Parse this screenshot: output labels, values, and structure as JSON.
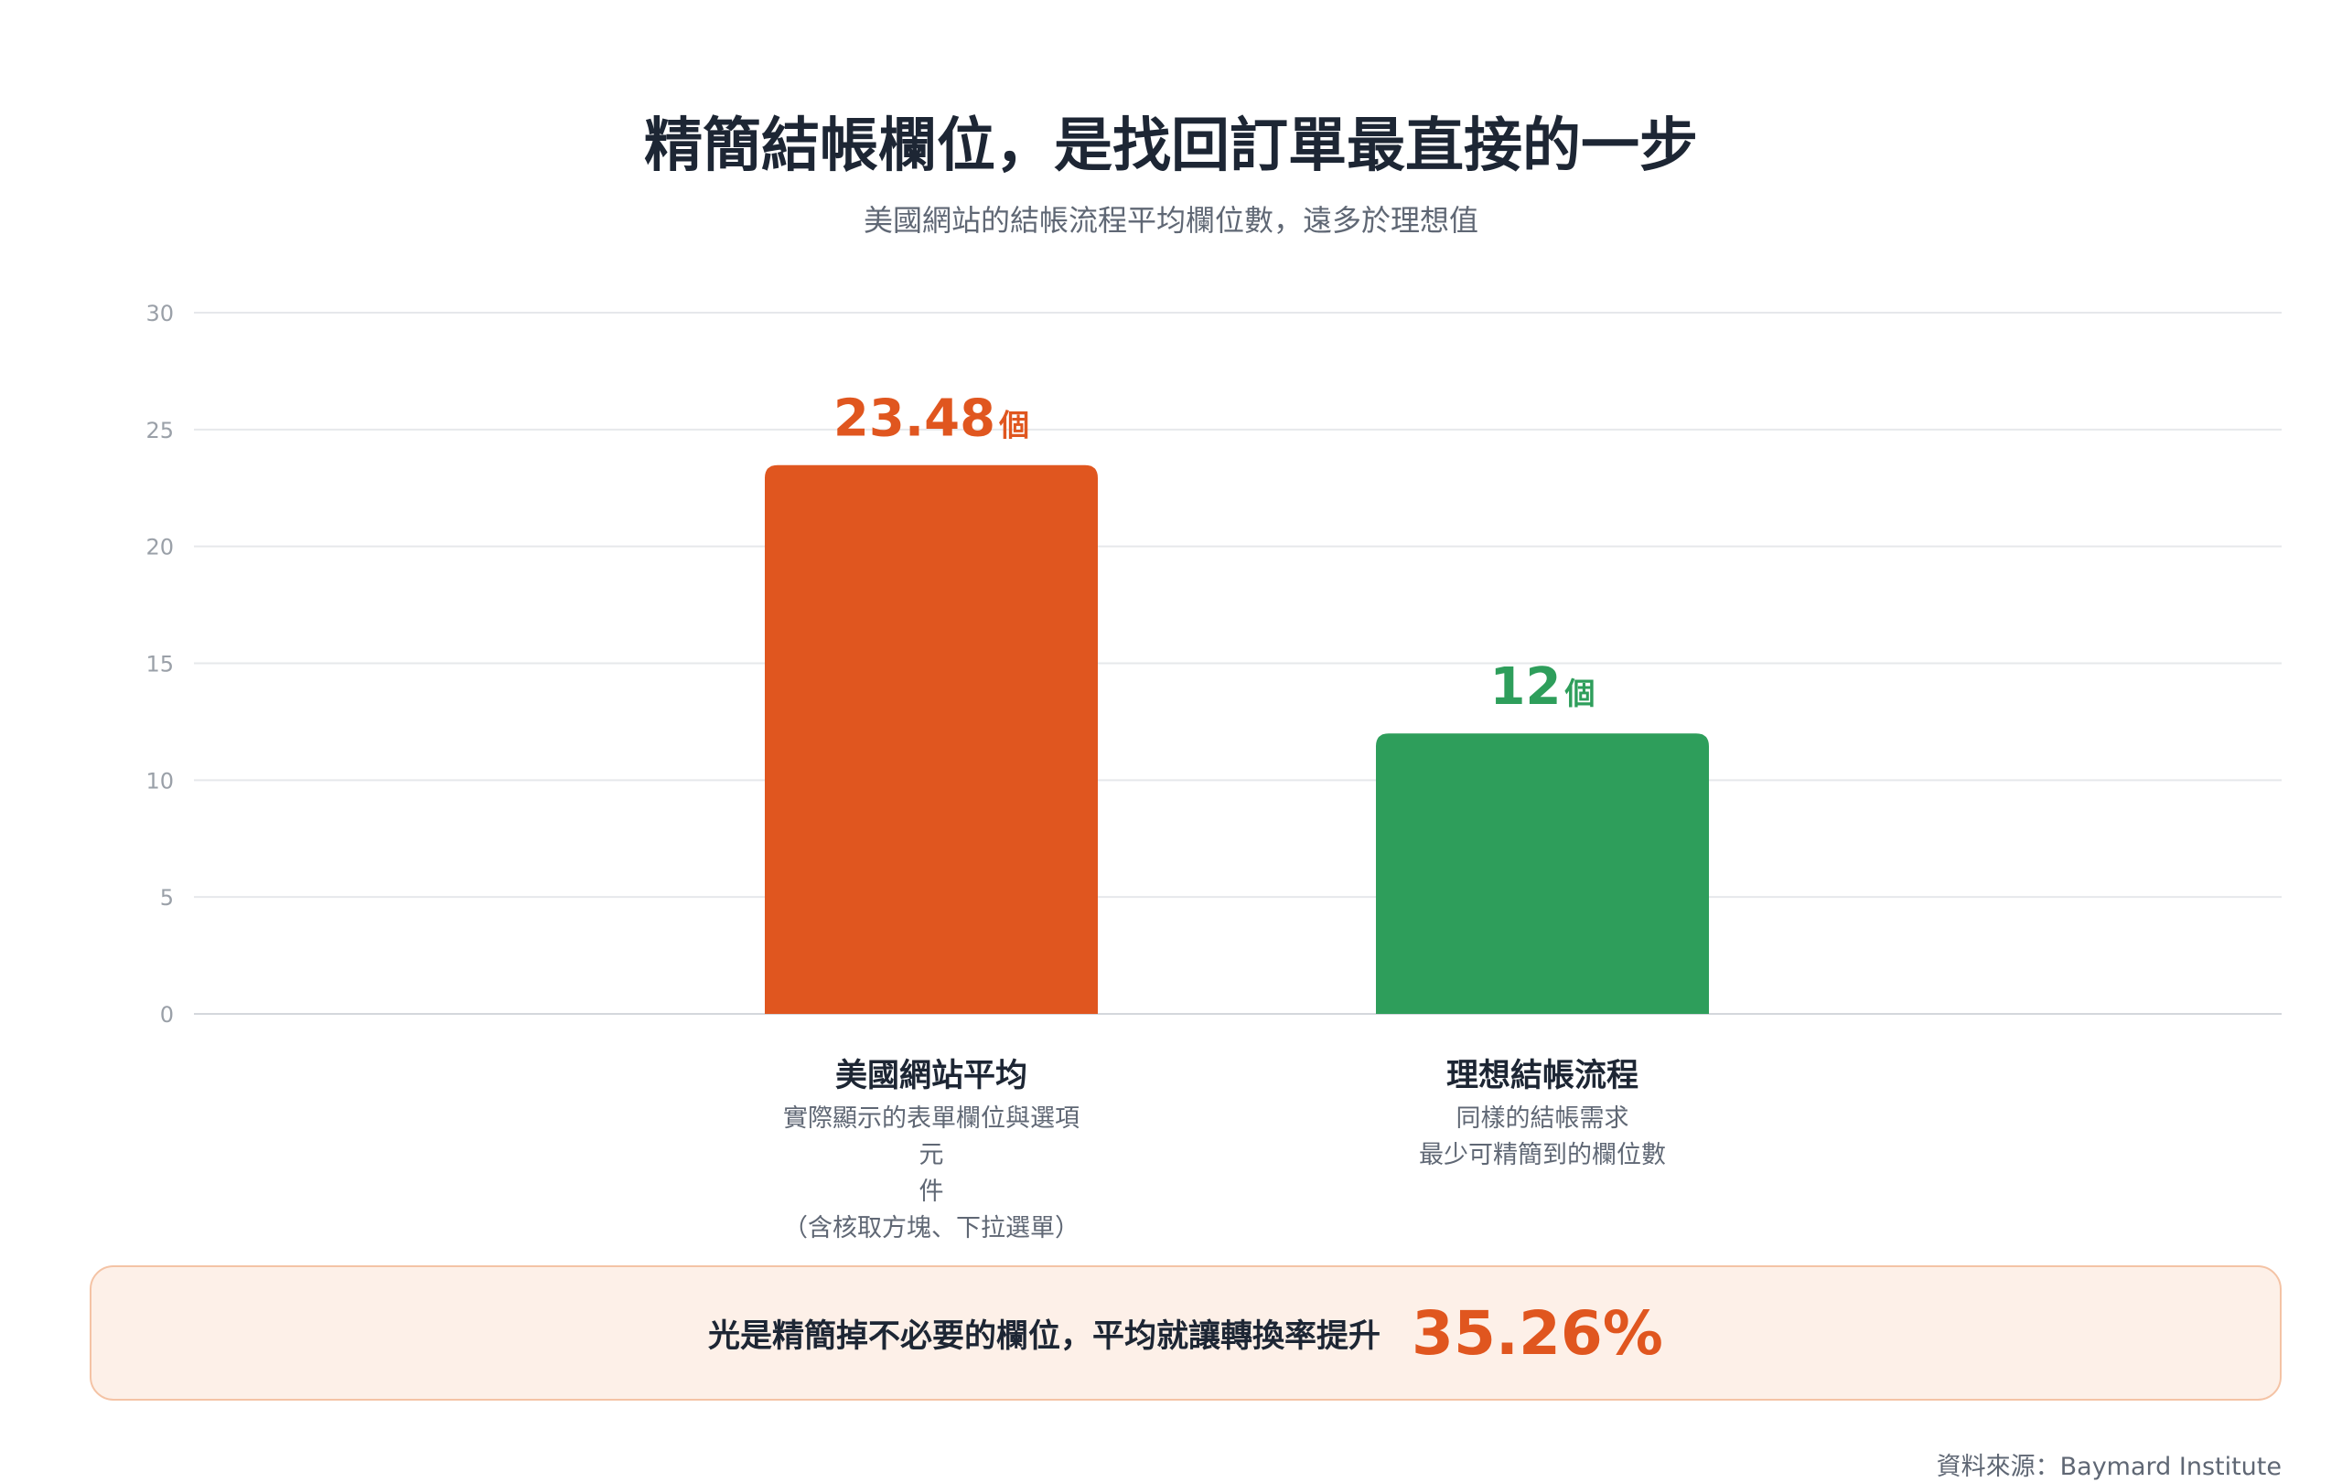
{
  "title": "精簡結帳欄位，是找回訂單最直接的一步",
  "subtitle": "美國網站的結帳流程平均欄位數，遠多於理想值",
  "chart_data": {
    "type": "bar",
    "categories": [
      "美國網站平均",
      "理想結帳流程"
    ],
    "values": [
      23.48,
      12
    ],
    "value_labels": [
      "23.48",
      "12"
    ],
    "value_unit": "個",
    "descriptions": [
      [
        "實際顯示的表單欄位與選項元",
        "件",
        "（含核取方塊、下拉選單）"
      ],
      [
        "同樣的結帳需求",
        "最少可精簡到的欄位數"
      ]
    ],
    "colors": [
      "#e0561f",
      "#2e9e5b"
    ],
    "ylim": [
      0,
      30
    ],
    "yticks": [
      0,
      5,
      10,
      15,
      20,
      25,
      30
    ],
    "grid": true
  },
  "callout": {
    "text": "光是精簡掉不必要的欄位，平均就讓轉換率提升",
    "value": "35.26%"
  },
  "source": "資料來源：Baymard Institute"
}
